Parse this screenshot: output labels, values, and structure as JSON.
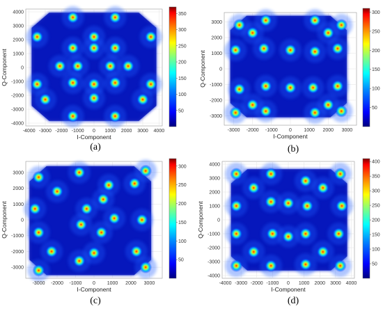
{
  "colormap": [
    "#00007f",
    "#0000ff",
    "#0080ff",
    "#00ffff",
    "#80ff80",
    "#ffff00",
    "#ff8000",
    "#ff0000",
    "#7f0000"
  ],
  "background_color": "#00007f",
  "chart_data": [
    {
      "type": "scatter",
      "caption": "(a)",
      "xlabel": "I-Component",
      "ylabel": "Q-Component",
      "xlim": [
        -4200,
        4200
      ],
      "ylim": [
        -4200,
        4200
      ],
      "xticks": [
        -4000,
        -3000,
        -2000,
        -1000,
        0,
        1000,
        2000,
        3000,
        4000
      ],
      "yticks": [
        -4000,
        -3000,
        -2000,
        -1000,
        0,
        1000,
        2000,
        3000,
        4000
      ],
      "colorbar": {
        "ticks": [
          50,
          100,
          150,
          200,
          250,
          300,
          350
        ],
        "max": 370
      },
      "grid": true,
      "clusters": [
        [
          -1300,
          3600
        ],
        [
          1300,
          3600
        ],
        [
          -3500,
          2200
        ],
        [
          3500,
          2200
        ],
        [
          -1300,
          1400
        ],
        [
          1300,
          1400
        ],
        [
          -2100,
          100
        ],
        [
          -1000,
          100
        ],
        [
          1000,
          100
        ],
        [
          2100,
          100
        ],
        [
          -1300,
          -1100
        ],
        [
          1300,
          -1100
        ],
        [
          -3500,
          -1200
        ],
        [
          3500,
          -1200
        ],
        [
          -1300,
          -3500
        ],
        [
          1300,
          -3500
        ],
        [
          0,
          2200
        ],
        [
          0,
          1400
        ],
        [
          0,
          -1200
        ],
        [
          0,
          -2200
        ],
        [
          -3000,
          -2300
        ],
        [
          3000,
          -2300
        ]
      ]
    },
    {
      "type": "scatter",
      "caption": "(b)",
      "xlabel": "I-Component",
      "ylabel": "Q-Component",
      "xlim": [
        -3500,
        3500
      ],
      "ylim": [
        -3600,
        3600
      ],
      "xticks": [
        -3000,
        -2000,
        -1000,
        0,
        1000,
        2000,
        3000
      ],
      "yticks": [
        -3000,
        -2000,
        -1000,
        0,
        1000,
        2000,
        3000
      ],
      "colorbar": {
        "ticks": [
          50,
          100,
          150,
          200,
          250,
          300
        ],
        "max": 310
      },
      "grid": true,
      "clusters": [
        [
          -2700,
          2800
        ],
        [
          -1300,
          3100
        ],
        [
          1300,
          3100
        ],
        [
          2700,
          2800
        ],
        [
          -2900,
          1200
        ],
        [
          -1400,
          1300
        ],
        [
          1300,
          1100
        ],
        [
          2500,
          1300
        ],
        [
          -2700,
          -1300
        ],
        [
          -1300,
          -1100
        ],
        [
          1200,
          -1200
        ],
        [
          2500,
          -1100
        ],
        [
          -2900,
          -2800
        ],
        [
          -1300,
          -2700
        ],
        [
          1300,
          -2800
        ],
        [
          2700,
          -2700
        ],
        [
          -2000,
          2300
        ],
        [
          2000,
          2300
        ],
        [
          -2000,
          -2300
        ],
        [
          2000,
          -2300
        ],
        [
          0,
          1200
        ],
        [
          0,
          -1200
        ]
      ]
    },
    {
      "type": "scatter",
      "caption": "(c)",
      "xlabel": "I-Component",
      "ylabel": "Q-Component",
      "xlim": [
        -3700,
        3700
      ],
      "ylim": [
        -3700,
        3700
      ],
      "xticks": [
        -3000,
        -2000,
        -1000,
        0,
        1000,
        2000,
        3000
      ],
      "yticks": [
        -3000,
        -2000,
        -1000,
        0,
        1000,
        2000,
        3000
      ],
      "colorbar": {
        "ticks": [
          50,
          100,
          150,
          200,
          250,
          300
        ],
        "max": 320
      },
      "grid": true,
      "clusters": [
        [
          -3000,
          2700
        ],
        [
          -800,
          3000
        ],
        [
          2800,
          3100
        ],
        [
          -3200,
          700
        ],
        [
          -400,
          700
        ],
        [
          500,
          1300
        ],
        [
          2200,
          2300
        ],
        [
          -3000,
          -800
        ],
        [
          -700,
          -300
        ],
        [
          400,
          -800
        ],
        [
          2600,
          0
        ],
        [
          1100,
          100
        ],
        [
          -3000,
          -3200
        ],
        [
          -800,
          -2600
        ],
        [
          2800,
          -3000
        ],
        [
          -2300,
          -2000
        ],
        [
          2300,
          -2000
        ],
        [
          0,
          -2100
        ],
        [
          -2000,
          1800
        ],
        [
          800,
          2200
        ]
      ]
    },
    {
      "type": "scatter",
      "caption": "(d)",
      "xlabel": "I-Component",
      "ylabel": "Q-Component",
      "xlim": [
        -4200,
        4200
      ],
      "ylim": [
        -4200,
        4200
      ],
      "xticks": [
        -4000,
        -3000,
        -2000,
        -1000,
        0,
        1000,
        2000,
        3000,
        4000
      ],
      "yticks": [
        -4000,
        -3000,
        -2000,
        -1000,
        0,
        1000,
        2000,
        3000,
        4000
      ],
      "colorbar": {
        "ticks": [
          50,
          100,
          150,
          200,
          250,
          300,
          350,
          400
        ],
        "max": 410
      },
      "grid": true,
      "clusters": [
        [
          -3300,
          3300
        ],
        [
          -1100,
          3300
        ],
        [
          1100,
          2800
        ],
        [
          3300,
          3300
        ],
        [
          -3300,
          1000
        ],
        [
          -1100,
          1300
        ],
        [
          1200,
          1000
        ],
        [
          3400,
          1000
        ],
        [
          -3300,
          -1000
        ],
        [
          -1000,
          -1000
        ],
        [
          1100,
          -1000
        ],
        [
          3200,
          -1000
        ],
        [
          -3300,
          -3300
        ],
        [
          -1100,
          -3300
        ],
        [
          1100,
          -3200
        ],
        [
          3300,
          -3300
        ],
        [
          -2200,
          2300
        ],
        [
          2200,
          2300
        ],
        [
          -2200,
          -2300
        ],
        [
          2200,
          -2300
        ],
        [
          0,
          1200
        ],
        [
          0,
          -1200
        ]
      ]
    }
  ]
}
